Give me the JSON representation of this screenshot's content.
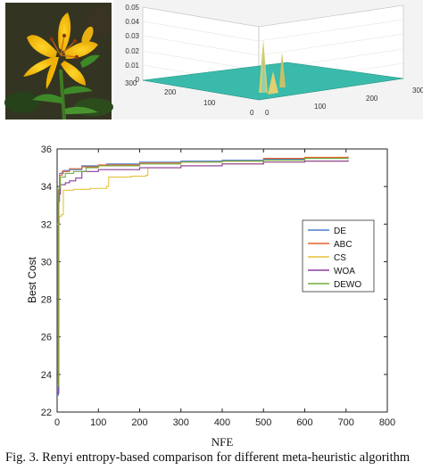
{
  "caption": "Fig. 3. Renyi entropy-based comparison for different meta-heuristic algorithm",
  "surface_panel": {
    "z_ticks": [
      "0.05",
      "0.04",
      "0.03",
      "0.02",
      "0.01",
      "0"
    ],
    "y_ticks": [
      "300",
      "200",
      "100",
      "0"
    ],
    "x_ticks": [
      "0",
      "100",
      "200",
      "300"
    ]
  },
  "chart_data": {
    "type": "line",
    "xlabel": "NFE",
    "ylabel": "Best Cost",
    "xlim": [
      0,
      800
    ],
    "ylim": [
      22,
      36
    ],
    "x_ticks": [
      0,
      100,
      200,
      300,
      400,
      500,
      600,
      700,
      800
    ],
    "y_ticks": [
      22,
      24,
      26,
      28,
      30,
      32,
      34,
      36
    ],
    "grid": false,
    "legend_position": "right",
    "series": [
      {
        "name": "DE",
        "color": "#4a7bd0",
        "points": [
          [
            0,
            22.9
          ],
          [
            3,
            33.2
          ],
          [
            6,
            34.7
          ],
          [
            15,
            34.85
          ],
          [
            30,
            34.9
          ],
          [
            60,
            35.1
          ],
          [
            120,
            35.2
          ],
          [
            200,
            35.3
          ],
          [
            300,
            35.35
          ],
          [
            400,
            35.4
          ],
          [
            500,
            35.45
          ],
          [
            600,
            35.5
          ],
          [
            705,
            35.55
          ]
        ]
      },
      {
        "name": "ABC",
        "color": "#e2622a",
        "points": [
          [
            0,
            23.5
          ],
          [
            3,
            33.8
          ],
          [
            6,
            34.6
          ],
          [
            12,
            34.8
          ],
          [
            30,
            34.95
          ],
          [
            60,
            35.05
          ],
          [
            100,
            35.15
          ],
          [
            200,
            35.25
          ],
          [
            300,
            35.3
          ],
          [
            400,
            35.35
          ],
          [
            500,
            35.5
          ],
          [
            600,
            35.55
          ],
          [
            705,
            35.6
          ]
        ]
      },
      {
        "name": "CS",
        "color": "#e6c23a",
        "points": [
          [
            0,
            32.0
          ],
          [
            5,
            32.4
          ],
          [
            10,
            32.5
          ],
          [
            15,
            33.8
          ],
          [
            40,
            33.85
          ],
          [
            80,
            33.9
          ],
          [
            120,
            34.0
          ],
          [
            125,
            34.5
          ],
          [
            180,
            34.55
          ],
          [
            215,
            34.6
          ],
          [
            220,
            35.0
          ],
          [
            300,
            35.1
          ],
          [
            400,
            35.2
          ],
          [
            500,
            35.3
          ],
          [
            600,
            35.35
          ],
          [
            705,
            35.4
          ]
        ]
      },
      {
        "name": "WOA",
        "color": "#8a3b9c",
        "points": [
          [
            0,
            23.0
          ],
          [
            4,
            33.6
          ],
          [
            8,
            34.1
          ],
          [
            20,
            34.2
          ],
          [
            30,
            34.3
          ],
          [
            45,
            34.45
          ],
          [
            60,
            34.8
          ],
          [
            100,
            34.9
          ],
          [
            200,
            35.0
          ],
          [
            300,
            35.1
          ],
          [
            400,
            35.2
          ],
          [
            500,
            35.3
          ],
          [
            600,
            35.35
          ],
          [
            705,
            35.4
          ]
        ]
      },
      {
        "name": "DEWO",
        "color": "#72ad3c",
        "points": [
          [
            0,
            23.4
          ],
          [
            4,
            33.9
          ],
          [
            8,
            34.5
          ],
          [
            20,
            34.7
          ],
          [
            40,
            34.8
          ],
          [
            70,
            35.0
          ],
          [
            100,
            35.1
          ],
          [
            200,
            35.2
          ],
          [
            300,
            35.3
          ],
          [
            400,
            35.35
          ],
          [
            500,
            35.4
          ],
          [
            600,
            35.5
          ],
          [
            705,
            35.55
          ]
        ]
      }
    ]
  }
}
